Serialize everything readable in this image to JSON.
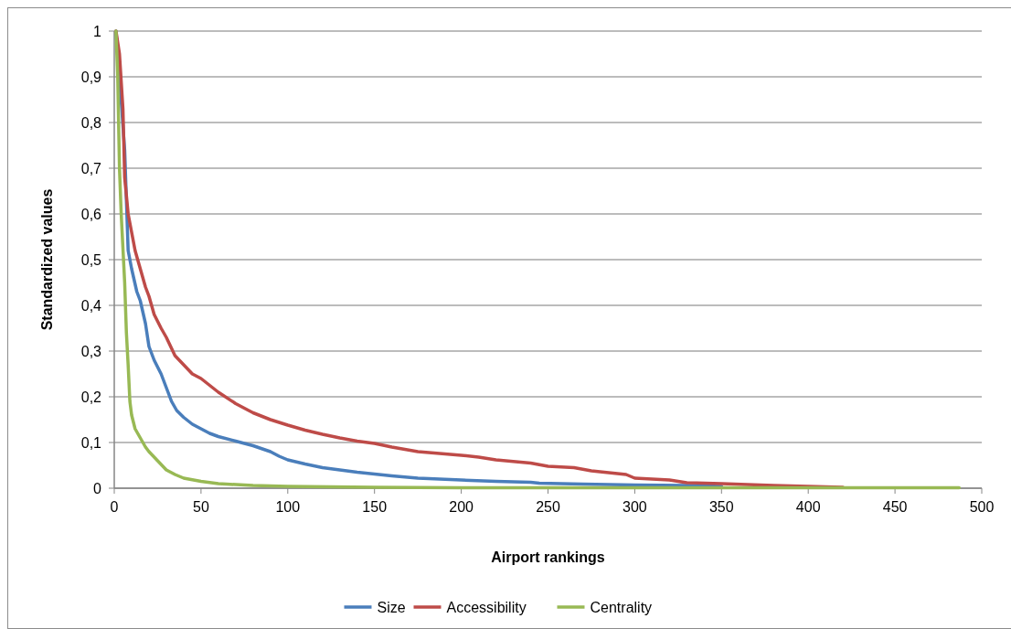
{
  "chart_data": {
    "type": "line",
    "xlabel": "Airport rankings",
    "ylabel": "Standardized values",
    "xlim": [
      0,
      500
    ],
    "xticks": [
      0,
      50,
      100,
      150,
      200,
      250,
      300,
      350,
      400,
      450,
      500
    ],
    "ylim": [
      0,
      1
    ],
    "yticks": [
      {
        "value": 0,
        "label": "0"
      },
      {
        "value": 0.1,
        "label": "0,1"
      },
      {
        "value": 0.2,
        "label": "0,2"
      },
      {
        "value": 0.3,
        "label": "0,3"
      },
      {
        "value": 0.4,
        "label": "0,4"
      },
      {
        "value": 0.5,
        "label": "0,5"
      },
      {
        "value": 0.6,
        "label": "0,6"
      },
      {
        "value": 0.7,
        "label": "0,7"
      },
      {
        "value": 0.8,
        "label": "0,8"
      },
      {
        "value": 0.9,
        "label": "0,9"
      },
      {
        "value": 1,
        "label": "1"
      }
    ],
    "grid": "y",
    "legend": "bottom",
    "marker": "none",
    "line_style": "solid",
    "series": [
      {
        "name": "Size",
        "color": "#4a7ebb",
        "x": [
          1,
          3,
          6,
          8,
          10,
          13,
          15,
          18,
          20,
          23,
          27,
          30,
          33,
          36,
          40,
          45,
          50,
          55,
          60,
          70,
          80,
          90,
          95,
          100,
          110,
          120,
          130,
          140,
          150,
          160,
          175,
          200,
          220,
          240,
          245,
          270,
          300,
          330,
          350
        ],
        "values": [
          1,
          0.9,
          0.74,
          0.52,
          0.48,
          0.43,
          0.41,
          0.36,
          0.31,
          0.28,
          0.25,
          0.22,
          0.19,
          0.17,
          0.155,
          0.14,
          0.13,
          0.12,
          0.113,
          0.103,
          0.093,
          0.08,
          0.07,
          0.062,
          0.053,
          0.045,
          0.04,
          0.035,
          0.031,
          0.027,
          0.022,
          0.018,
          0.015,
          0.013,
          0.011,
          0.009,
          0.007,
          0.006,
          0.004
        ]
      },
      {
        "name": "Accessibility",
        "color": "#be4b48",
        "x": [
          1,
          3,
          5,
          6,
          8,
          10,
          12,
          15,
          18,
          20,
          23,
          27,
          30,
          35,
          40,
          45,
          50,
          55,
          60,
          70,
          80,
          90,
          100,
          110,
          120,
          130,
          140,
          150,
          160,
          175,
          200,
          210,
          220,
          240,
          250,
          265,
          275,
          295,
          300,
          320,
          330,
          350,
          380,
          400,
          420
        ],
        "values": [
          1,
          0.95,
          0.83,
          0.68,
          0.6,
          0.56,
          0.52,
          0.48,
          0.44,
          0.42,
          0.38,
          0.35,
          0.33,
          0.29,
          0.27,
          0.25,
          0.24,
          0.225,
          0.21,
          0.185,
          0.165,
          0.15,
          0.138,
          0.127,
          0.118,
          0.11,
          0.103,
          0.098,
          0.09,
          0.08,
          0.072,
          0.068,
          0.062,
          0.055,
          0.048,
          0.045,
          0.038,
          0.03,
          0.022,
          0.018,
          0.012,
          0.01,
          0.006,
          0.004,
          0.002
        ]
      },
      {
        "name": "Centrality",
        "color": "#98b954",
        "x": [
          1,
          2,
          3,
          4,
          6,
          7,
          8,
          9,
          10,
          12,
          15,
          18,
          20,
          25,
          30,
          35,
          40,
          50,
          60,
          80,
          100,
          150,
          200,
          487
        ],
        "values": [
          1,
          0.9,
          0.7,
          0.6,
          0.45,
          0.34,
          0.27,
          0.19,
          0.16,
          0.13,
          0.11,
          0.09,
          0.08,
          0.06,
          0.04,
          0.03,
          0.022,
          0.015,
          0.01,
          0.006,
          0.004,
          0.002,
          0.001,
          0.001
        ]
      }
    ]
  }
}
